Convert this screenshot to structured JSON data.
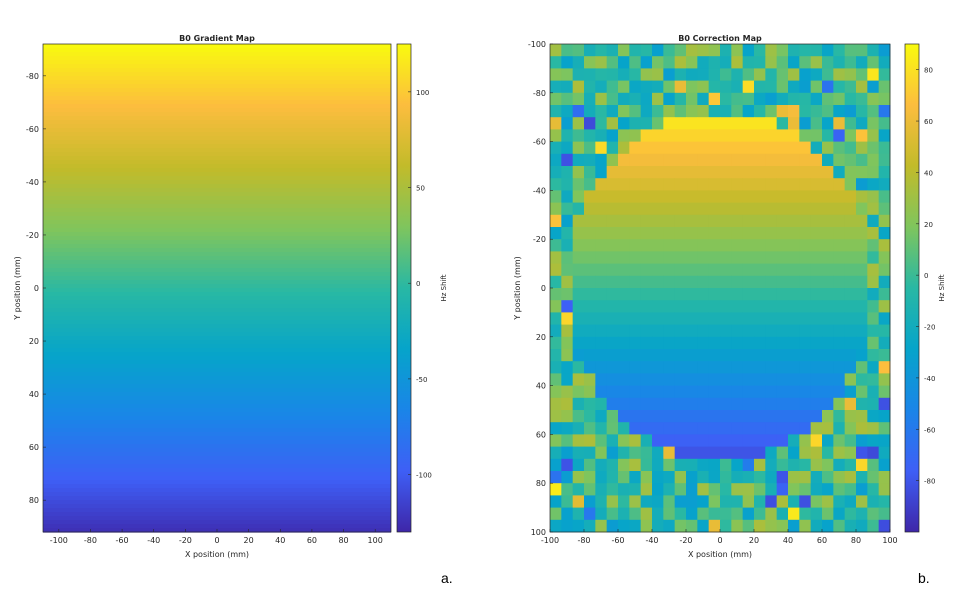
{
  "chart_data": [
    {
      "type": "heatmap",
      "title": "B0 Gradient Map",
      "xlabel": "X position (mm)",
      "ylabel": "Y position (mm)",
      "colorbar_label": "Hz Shift",
      "xlim": [
        -110,
        110
      ],
      "ylim": [
        -92,
        92
      ],
      "y_direction": "reverse",
      "xticks": [
        -100,
        -80,
        -60,
        -40,
        -20,
        0,
        20,
        40,
        60,
        80,
        100
      ],
      "yticks": [
        -80,
        -60,
        -40,
        -20,
        0,
        20,
        40,
        60,
        80
      ],
      "clim": [
        -130,
        125
      ],
      "colorbar_ticks": [
        100,
        50,
        0,
        -50,
        -100
      ],
      "gradient": "linear in y: value = -1.36 * y (Hz)",
      "panel_label": "a."
    },
    {
      "type": "heatmap",
      "title": "B0 Correction Map",
      "xlabel": "X position (mm)",
      "ylabel": "Y position (mm)",
      "colorbar_label": "Hz Shift",
      "xlim": [
        -100,
        100
      ],
      "ylim": [
        -100,
        100
      ],
      "y_direction": "reverse",
      "xticks": [
        -100,
        -80,
        -60,
        -40,
        -20,
        0,
        20,
        40,
        60,
        80,
        100
      ],
      "yticks": [
        -100,
        -80,
        -60,
        -40,
        -20,
        0,
        20,
        40,
        60,
        80,
        100
      ],
      "clim": [
        -100,
        90
      ],
      "colorbar_ticks": [
        80,
        60,
        40,
        20,
        0,
        -20,
        -40,
        -60,
        -80
      ],
      "grid_size": [
        30,
        40
      ],
      "description": "elliptical region of horizontal bands from +85 Hz at top to -85 Hz at bottom, surrounded by random noise around 0 Hz",
      "panel_label": "b."
    }
  ]
}
